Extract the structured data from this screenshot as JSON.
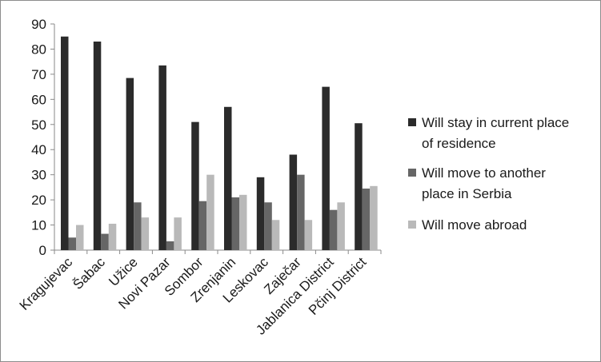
{
  "chart_data": {
    "type": "bar",
    "title": "",
    "xlabel": "",
    "ylabel": "",
    "ylim": [
      0,
      90
    ],
    "yticks": [
      0,
      10,
      20,
      30,
      40,
      50,
      60,
      70,
      80,
      90
    ],
    "grid": false,
    "legend_position": "right",
    "categories": [
      "Kragujevac",
      "Šabac",
      "Užice",
      "Novi Pazar",
      "Sombor",
      "Zrenjanin",
      "Leskovac",
      "Zaječar",
      "Jablanica District",
      "Pčinj District"
    ],
    "series": [
      {
        "name": "Will stay in current place of residence",
        "legend_lines": [
          "Will stay in current place",
          "of residence"
        ],
        "color": "#2b2b2b",
        "values": [
          85,
          83,
          68.5,
          73.5,
          51,
          57,
          29,
          38,
          65,
          50.5
        ]
      },
      {
        "name": "Will move to another place in Serbia",
        "legend_lines": [
          "Will move to another",
          "place in Serbia"
        ],
        "color": "#666666",
        "values": [
          5,
          6.5,
          19,
          3.5,
          19.5,
          21,
          19,
          30,
          16,
          24.5
        ]
      },
      {
        "name": "Will move abroad",
        "legend_lines": [
          "Will move abroad"
        ],
        "color": "#b9b9b9",
        "values": [
          10,
          10.5,
          13,
          13,
          30,
          22,
          12,
          12,
          19,
          25.5
        ]
      }
    ]
  }
}
